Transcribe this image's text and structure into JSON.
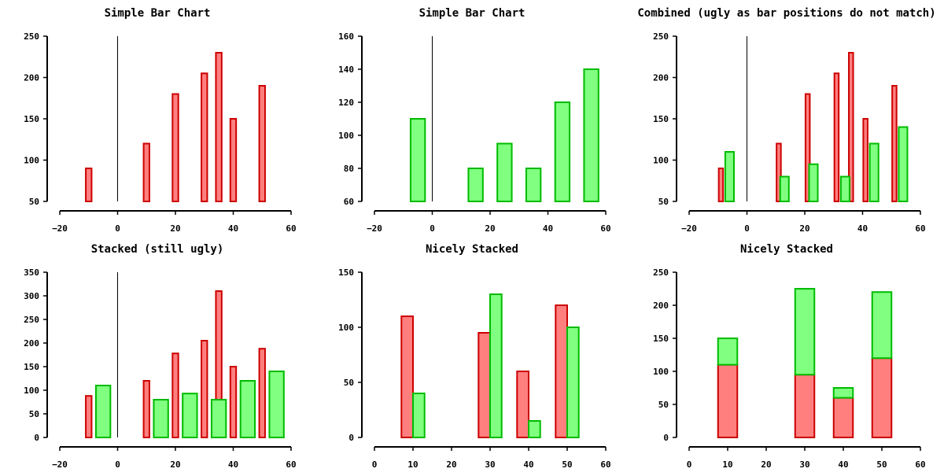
{
  "colors": {
    "red_fill": "#ff7f7f",
    "red_stroke": "#cc0000",
    "green_fill": "#80ff80",
    "green_stroke": "#00bb00"
  },
  "chart_data": [
    {
      "type": "bar",
      "title": "Simple Bar Chart",
      "xlim": [
        -20,
        60
      ],
      "ylim": [
        50,
        250
      ],
      "xticks": [
        -20,
        0,
        20,
        40,
        60
      ],
      "yticks": [
        50,
        100,
        150,
        200,
        250
      ],
      "series": [
        {
          "color": "red",
          "bar_width": 2,
          "x": [
            -10,
            10,
            20,
            30,
            35,
            40,
            50
          ],
          "values": [
            90,
            120,
            180,
            205,
            230,
            150,
            190
          ]
        }
      ]
    },
    {
      "type": "bar",
      "title": "Simple Bar Chart",
      "xlim": [
        -20,
        60
      ],
      "ylim": [
        60,
        160
      ],
      "xticks": [
        -20,
        0,
        20,
        40,
        60
      ],
      "yticks": [
        60,
        80,
        100,
        120,
        140,
        160
      ],
      "series": [
        {
          "color": "green",
          "bar_width": 5,
          "x": [
            -5,
            15,
            25,
            35,
            45,
            55
          ],
          "values": [
            110,
            80,
            95,
            80,
            120,
            140
          ]
        }
      ]
    },
    {
      "type": "bar",
      "title": "Combined (ugly as bar positions do not match)",
      "xlim": [
        -20,
        60
      ],
      "ylim": [
        50,
        250
      ],
      "xticks": [
        -20,
        0,
        20,
        40,
        60
      ],
      "yticks": [
        50,
        100,
        150,
        200,
        250
      ],
      "series": [
        {
          "color": "red",
          "bar_width": 1.5,
          "x": [
            -9,
            11,
            21,
            31,
            36,
            41,
            51
          ],
          "values": [
            90,
            120,
            180,
            205,
            230,
            150,
            190
          ]
        },
        {
          "color": "green",
          "bar_width": 3,
          "x": [
            -6,
            13,
            23,
            34,
            44,
            54
          ],
          "values": [
            110,
            80,
            95,
            80,
            120,
            140
          ]
        }
      ]
    },
    {
      "type": "bar",
      "title": "Stacked (still ugly)",
      "xlim": [
        -20,
        60
      ],
      "ylim": [
        0,
        350
      ],
      "xticks": [
        -20,
        0,
        20,
        40,
        60
      ],
      "yticks": [
        0,
        50,
        100,
        150,
        200,
        250,
        300,
        350
      ],
      "series": [
        {
          "color": "red",
          "bar_width": 2,
          "x": [
            -10,
            10,
            20,
            30,
            35,
            40,
            50
          ],
          "values": [
            88,
            120,
            178,
            205,
            310,
            150,
            188
          ]
        },
        {
          "color": "green",
          "bar_width": 5,
          "x": [
            -5,
            15,
            25,
            35,
            45,
            55
          ],
          "values": [
            110,
            80,
            93,
            80,
            120,
            140
          ]
        }
      ]
    },
    {
      "type": "bar",
      "title": "Nicely Stacked",
      "xlim": [
        0,
        60
      ],
      "ylim": [
        0,
        150
      ],
      "xticks": [
        0,
        10,
        20,
        30,
        40,
        50,
        60
      ],
      "yticks": [
        0,
        50,
        100,
        150
      ],
      "series": [
        {
          "color": "red",
          "bar_width": 3,
          "x": [
            8.5,
            28.5,
            38.5,
            48.5
          ],
          "values": [
            110,
            95,
            60,
            120
          ]
        },
        {
          "color": "green",
          "bar_width": 3,
          "x": [
            11.5,
            31.5,
            41.5,
            51.5
          ],
          "values": [
            40,
            130,
            15,
            100
          ]
        }
      ]
    },
    {
      "type": "bar",
      "stacked": true,
      "title": "Nicely Stacked",
      "xlim": [
        0,
        60
      ],
      "ylim": [
        0,
        250
      ],
      "xticks": [
        0,
        10,
        20,
        30,
        40,
        50,
        60
      ],
      "yticks": [
        0,
        50,
        100,
        150,
        200,
        250
      ],
      "categories_x": [
        10,
        30,
        40,
        50
      ],
      "bar_width": 5,
      "series": [
        {
          "color": "red",
          "values": [
            110,
            95,
            60,
            120
          ]
        },
        {
          "color": "green",
          "values": [
            40,
            130,
            15,
            100
          ]
        }
      ]
    }
  ]
}
